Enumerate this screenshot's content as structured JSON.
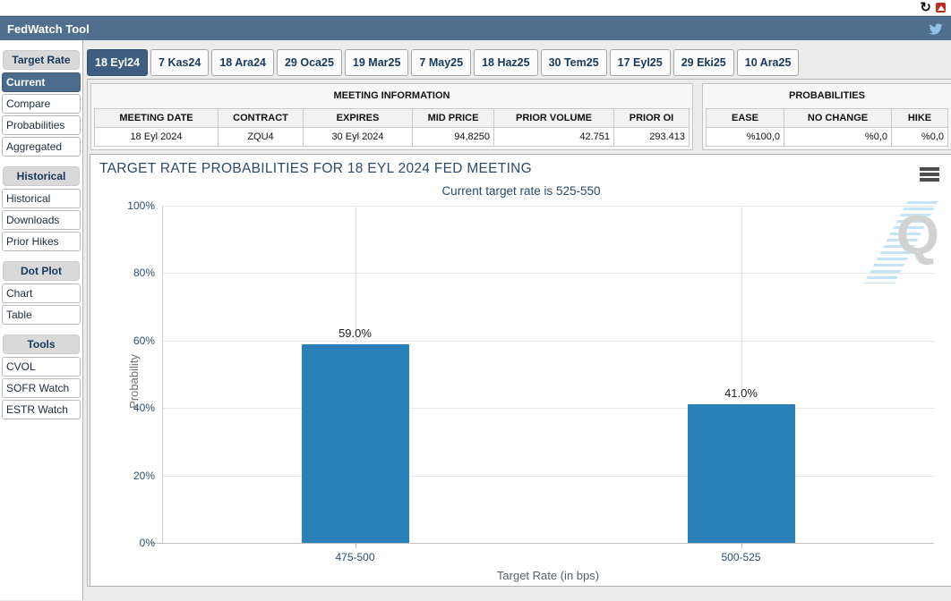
{
  "browser": {
    "reload_glyph": "↻"
  },
  "titlebar": {
    "title": "FedWatch Tool"
  },
  "sidebar": {
    "sections": [
      {
        "title": "Target Rate",
        "items": [
          {
            "label": "Current",
            "selected": true
          },
          {
            "label": "Compare"
          },
          {
            "label": "Probabilities"
          },
          {
            "label": "Aggregated"
          }
        ]
      },
      {
        "title": "Historical",
        "items": [
          {
            "label": "Historical"
          },
          {
            "label": "Downloads"
          },
          {
            "label": "Prior Hikes"
          }
        ]
      },
      {
        "title": "Dot Plot",
        "items": [
          {
            "label": "Chart"
          },
          {
            "label": "Table"
          }
        ]
      },
      {
        "title": "Tools",
        "items": [
          {
            "label": "CVOL"
          },
          {
            "label": "SOFR Watch"
          },
          {
            "label": "ESTR Watch"
          }
        ]
      }
    ]
  },
  "tabs": [
    {
      "label": "18 Eyl24",
      "selected": true
    },
    {
      "label": "7 Kas24"
    },
    {
      "label": "18 Ara24"
    },
    {
      "label": "29 Oca25"
    },
    {
      "label": "19 Mar25"
    },
    {
      "label": "7 May25"
    },
    {
      "label": "18 Haz25"
    },
    {
      "label": "30 Tem25"
    },
    {
      "label": "17 Eyl25"
    },
    {
      "label": "29 Eki25"
    },
    {
      "label": "10 Ara25"
    }
  ],
  "meeting_info": {
    "title": "MEETING INFORMATION",
    "columns": [
      "MEETING DATE",
      "CONTRACT",
      "EXPIRES",
      "MID PRICE",
      "PRIOR VOLUME",
      "PRIOR OI"
    ],
    "values": [
      "18 Eyl 2024",
      "ZQU4",
      "30 Eyl 2024",
      "94,8250",
      "42.751",
      "293.413"
    ]
  },
  "probabilities": {
    "title": "PROBABILITIES",
    "columns": [
      "EASE",
      "NO CHANGE",
      "HIKE"
    ],
    "values": [
      "%100,0",
      "%0,0",
      "%0,0"
    ]
  },
  "chart_data": {
    "type": "bar",
    "title": "TARGET RATE PROBABILITIES FOR 18 EYL 2024 FED MEETING",
    "subtitle": "Current target rate is 525-550",
    "categories": [
      "475-500",
      "500-525"
    ],
    "values": [
      59.0,
      41.0
    ],
    "data_labels": [
      "59.0%",
      "41.0%"
    ],
    "xlabel": "Target Rate (in bps)",
    "ylabel": "Probability",
    "ylim": [
      0,
      100
    ],
    "ytick_labels": [
      "0%",
      "20%",
      "40%",
      "60%",
      "80%",
      "100%"
    ],
    "grid": true,
    "legend": "none",
    "bar_color": "#2980b8",
    "watermark_letter": "Q"
  },
  "icons": {
    "reload": "reload-icon",
    "red_badge": "red-extension-icon",
    "twitter": "twitter-bird-icon",
    "chart_menu": "hamburger-menu-icon"
  }
}
